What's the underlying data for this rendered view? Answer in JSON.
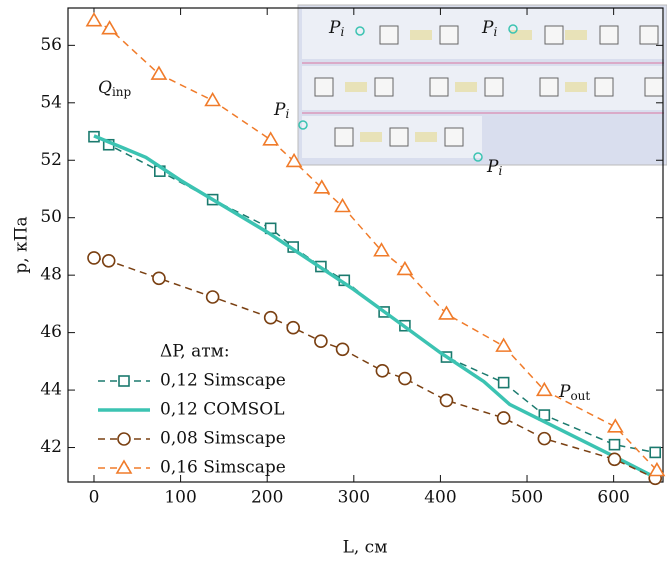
{
  "chart_data": {
    "type": "line",
    "x_label": "L, см",
    "y_label": "p, кПа",
    "legend_title": "ΔP, атм:",
    "annotations": [
      {
        "text": "Q",
        "subscript": "inp"
      },
      {
        "text": "P",
        "subscript": "i"
      },
      {
        "text": "P",
        "subscript": "i"
      },
      {
        "text": "P",
        "subscript": "i"
      },
      {
        "text": "P",
        "subscript": "i"
      },
      {
        "text": "P",
        "subscript": "out"
      }
    ],
    "xlim": [
      -30,
      657
    ],
    "ylim": [
      40.8,
      57.3
    ],
    "xticks": [
      0,
      100,
      200,
      300,
      400,
      500,
      600
    ],
    "yticks": [
      42,
      44,
      46,
      48,
      50,
      52,
      54,
      56
    ],
    "series": [
      {
        "name": "0,12 Simscape",
        "color": "#1b7a6e",
        "marker": "square",
        "dash": true,
        "x": [
          0,
          17,
          76,
          137,
          204,
          230,
          262,
          289,
          335,
          359,
          407,
          473,
          520,
          601,
          648
        ],
        "values": [
          52.82,
          52.54,
          51.62,
          50.63,
          49.63,
          48.98,
          48.3,
          47.82,
          46.72,
          46.24,
          45.15,
          44.26,
          43.13,
          42.1,
          41.83
        ]
      },
      {
        "name": "0,12 COMSOL",
        "color": "#3cc3b2",
        "marker": "none",
        "dash": false,
        "x": [
          0,
          60,
          100,
          150,
          200,
          250,
          300,
          350,
          400,
          450,
          480,
          520,
          600,
          655
        ],
        "values": [
          52.85,
          52.1,
          51.3,
          50.4,
          49.5,
          48.5,
          47.5,
          46.4,
          45.3,
          44.3,
          43.5,
          42.9,
          41.7,
          40.85
        ]
      },
      {
        "name": "0,08 Simscape",
        "color": "#7a4012",
        "marker": "circle",
        "dash": true,
        "x": [
          0,
          17,
          75,
          137,
          204,
          230,
          262,
          287,
          333,
          359,
          407,
          473,
          520,
          601,
          648
        ],
        "values": [
          48.6,
          48.5,
          47.89,
          47.24,
          46.52,
          46.17,
          45.7,
          45.42,
          44.67,
          44.4,
          43.64,
          43.03,
          42.31,
          41.59,
          40.93
        ]
      },
      {
        "name": "0,16 Simscape",
        "color": "#f07b2a",
        "marker": "triangle",
        "dash": true,
        "x": [
          0,
          18,
          75,
          137,
          204,
          231,
          263,
          287,
          332,
          359,
          407,
          473,
          520,
          602,
          650
        ],
        "values": [
          56.86,
          56.58,
          55.0,
          54.08,
          52.71,
          51.96,
          51.04,
          50.39,
          48.85,
          48.2,
          46.65,
          45.53,
          43.99,
          42.72,
          41.2
        ]
      }
    ]
  }
}
